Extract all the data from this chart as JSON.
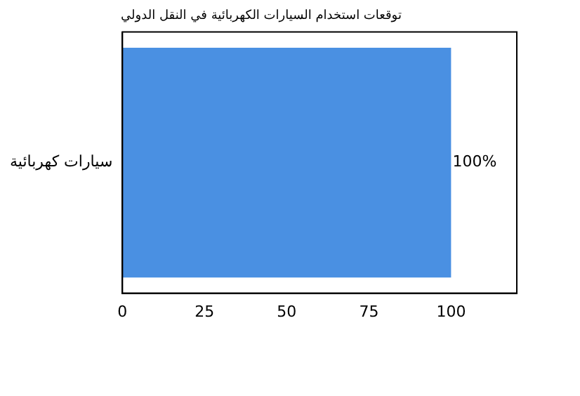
{
  "chart_data": {
    "type": "bar",
    "orientation": "horizontal",
    "title": "توقعات استخدام السيارات الكهربائية في النقل الدولي",
    "categories": [
      "سيارات كهربائية"
    ],
    "values": [
      100
    ],
    "value_labels": [
      "100%"
    ],
    "color": "#4a90e2",
    "xlim": [
      0,
      120
    ],
    "xticks": [
      0,
      25,
      50,
      75,
      100
    ],
    "grid": false,
    "legend": false
  }
}
